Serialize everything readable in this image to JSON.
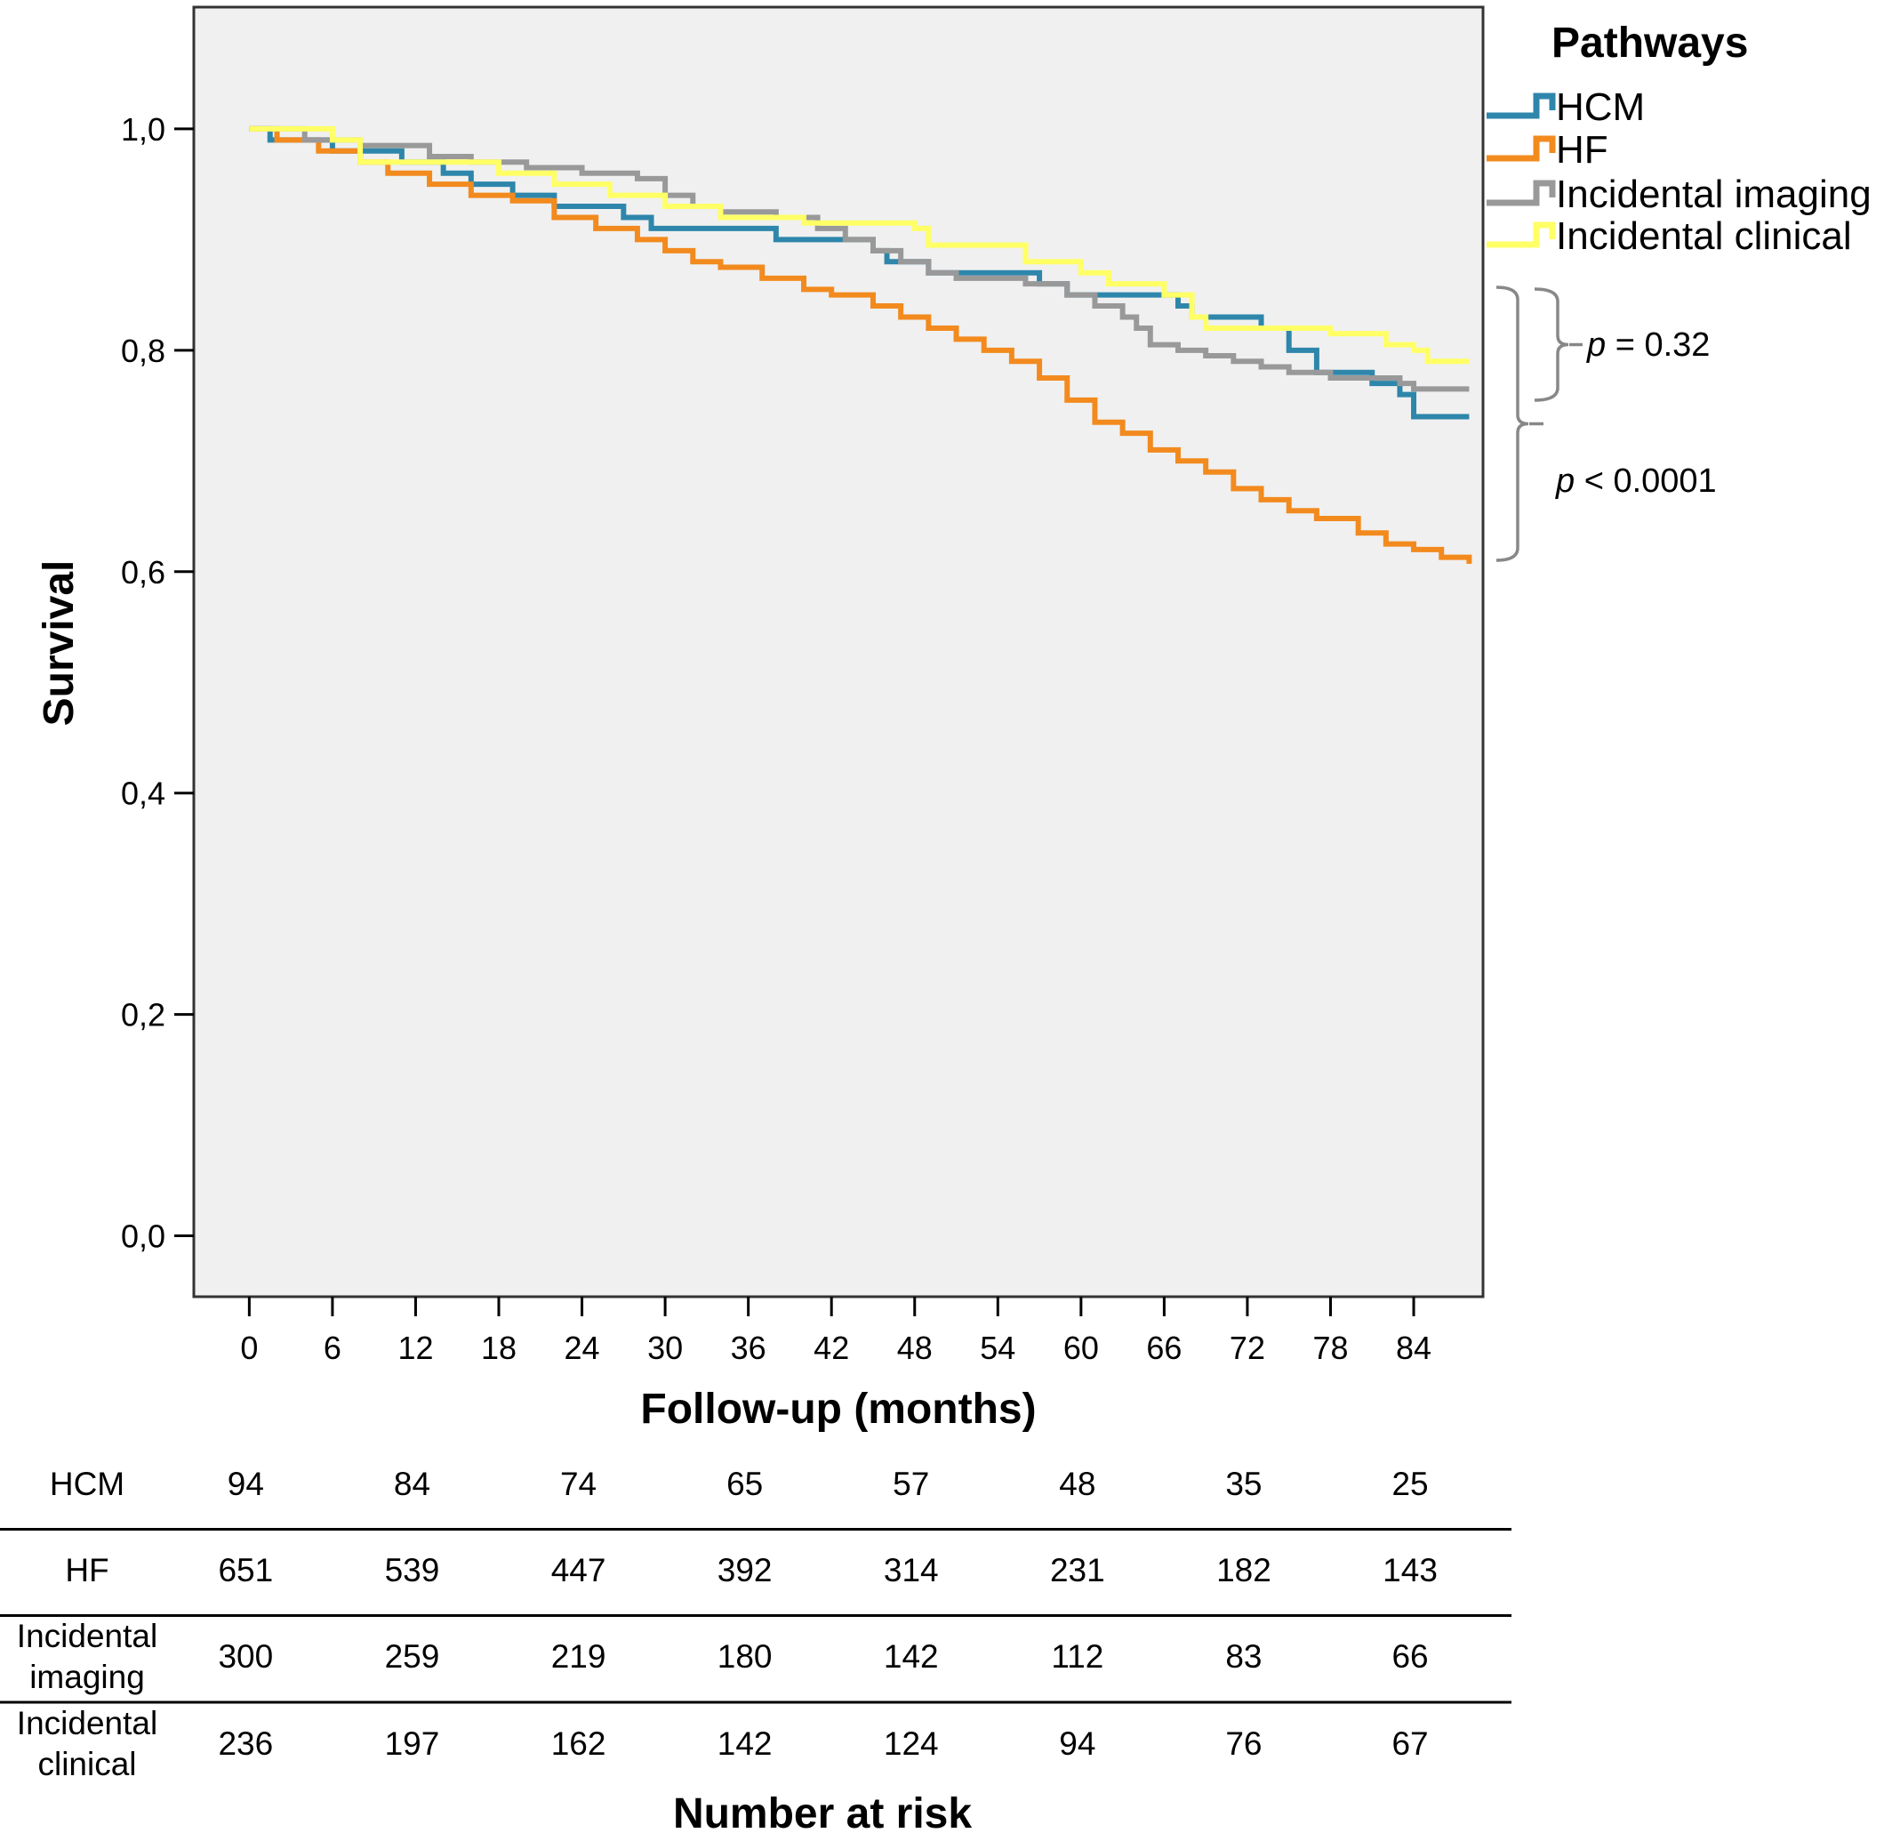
{
  "chart_data": {
    "type": "line",
    "step": true,
    "xlabel": "Follow-up (months)",
    "ylabel": "Survival",
    "xlim": [
      -4,
      89
    ],
    "ylim": [
      -0.055,
      1.11
    ],
    "x_ticks": [
      0,
      6,
      12,
      18,
      24,
      30,
      36,
      42,
      48,
      54,
      60,
      66,
      72,
      78,
      84
    ],
    "y_ticks": [
      0.0,
      0.2,
      0.4,
      0.6,
      0.8,
      1.0
    ],
    "y_tick_labels": [
      "0,0",
      "0,2",
      "0,4",
      "0,6",
      "0,8",
      "1,0"
    ],
    "grid": false,
    "plot_background": "#f0f0f0",
    "legend": {
      "title": "Pathways",
      "placement": "right"
    },
    "series": [
      {
        "name": "HCM",
        "color": "#2e86ab",
        "points": [
          [
            0,
            1.0
          ],
          [
            1.5,
            0.99
          ],
          [
            6,
            0.98
          ],
          [
            11,
            0.97
          ],
          [
            14,
            0.96
          ],
          [
            16,
            0.95
          ],
          [
            19,
            0.94
          ],
          [
            22,
            0.93
          ],
          [
            27,
            0.92
          ],
          [
            29,
            0.91
          ],
          [
            34,
            0.91
          ],
          [
            38,
            0.9
          ],
          [
            45,
            0.89
          ],
          [
            46,
            0.88
          ],
          [
            49,
            0.87
          ],
          [
            57,
            0.86
          ],
          [
            59,
            0.85
          ],
          [
            67,
            0.84
          ],
          [
            68,
            0.83
          ],
          [
            73,
            0.82
          ],
          [
            75,
            0.8
          ],
          [
            77,
            0.78
          ],
          [
            81,
            0.77
          ],
          [
            83,
            0.76
          ],
          [
            84,
            0.74
          ],
          [
            88,
            0.74
          ]
        ]
      },
      {
        "name": "HF",
        "color": "#f28a1e",
        "points": [
          [
            0,
            1.0
          ],
          [
            2,
            0.99
          ],
          [
            5,
            0.98
          ],
          [
            8,
            0.97
          ],
          [
            10,
            0.96
          ],
          [
            13,
            0.95
          ],
          [
            16,
            0.94
          ],
          [
            19,
            0.935
          ],
          [
            22,
            0.92
          ],
          [
            25,
            0.91
          ],
          [
            28,
            0.9
          ],
          [
            30,
            0.89
          ],
          [
            32,
            0.88
          ],
          [
            34,
            0.875
          ],
          [
            37,
            0.865
          ],
          [
            40,
            0.855
          ],
          [
            42,
            0.85
          ],
          [
            45,
            0.84
          ],
          [
            47,
            0.83
          ],
          [
            49,
            0.82
          ],
          [
            51,
            0.81
          ],
          [
            53,
            0.8
          ],
          [
            55,
            0.79
          ],
          [
            57,
            0.775
          ],
          [
            59,
            0.755
          ],
          [
            61,
            0.735
          ],
          [
            63,
            0.725
          ],
          [
            65,
            0.71
          ],
          [
            67,
            0.7
          ],
          [
            69,
            0.69
          ],
          [
            71,
            0.675
          ],
          [
            73,
            0.665
          ],
          [
            75,
            0.655
          ],
          [
            77,
            0.648
          ],
          [
            80,
            0.635
          ],
          [
            82,
            0.625
          ],
          [
            84,
            0.62
          ],
          [
            86,
            0.613
          ],
          [
            88,
            0.607
          ]
        ]
      },
      {
        "name": "Incidental imaging",
        "color": "#999999",
        "points": [
          [
            0,
            1.0
          ],
          [
            4,
            0.99
          ],
          [
            8,
            0.985
          ],
          [
            13,
            0.975
          ],
          [
            16,
            0.97
          ],
          [
            20,
            0.965
          ],
          [
            24,
            0.96
          ],
          [
            28,
            0.955
          ],
          [
            30,
            0.94
          ],
          [
            32,
            0.93
          ],
          [
            34,
            0.925
          ],
          [
            38,
            0.92
          ],
          [
            41,
            0.91
          ],
          [
            43,
            0.9
          ],
          [
            45,
            0.89
          ],
          [
            47,
            0.88
          ],
          [
            49,
            0.87
          ],
          [
            51,
            0.865
          ],
          [
            56,
            0.86
          ],
          [
            59,
            0.85
          ],
          [
            61,
            0.84
          ],
          [
            63,
            0.83
          ],
          [
            64,
            0.82
          ],
          [
            65,
            0.805
          ],
          [
            67,
            0.8
          ],
          [
            69,
            0.795
          ],
          [
            71,
            0.79
          ],
          [
            73,
            0.785
          ],
          [
            75,
            0.78
          ],
          [
            78,
            0.775
          ],
          [
            83,
            0.77
          ],
          [
            84,
            0.765
          ],
          [
            88,
            0.765
          ]
        ]
      },
      {
        "name": "Incidental clinical",
        "color": "#ffff66",
        "points": [
          [
            0,
            1.0
          ],
          [
            6,
            0.99
          ],
          [
            8,
            0.97
          ],
          [
            18,
            0.96
          ],
          [
            22,
            0.95
          ],
          [
            26,
            0.94
          ],
          [
            30,
            0.93
          ],
          [
            34,
            0.92
          ],
          [
            40,
            0.915
          ],
          [
            48,
            0.91
          ],
          [
            49,
            0.895
          ],
          [
            56,
            0.88
          ],
          [
            60,
            0.87
          ],
          [
            62,
            0.86
          ],
          [
            66,
            0.85
          ],
          [
            68,
            0.83
          ],
          [
            69,
            0.82
          ],
          [
            78,
            0.815
          ],
          [
            82,
            0.805
          ],
          [
            84,
            0.8
          ],
          [
            85,
            0.79
          ],
          [
            88,
            0.79
          ]
        ]
      }
    ],
    "annotations": [
      {
        "text": "p = 0.32",
        "between": [
          "HCM",
          "Incidental imaging",
          "Incidental clinical"
        ]
      },
      {
        "text": "p < 0.0001",
        "between": [
          "all pathways"
        ]
      }
    ]
  },
  "pvalues": [
    {
      "italic": "p",
      "rest": " = 0.32"
    },
    {
      "italic": "p",
      "rest": " < 0.0001"
    }
  ],
  "risk_table": {
    "title": "Number at risk",
    "time_points": [
      0,
      12,
      24,
      36,
      48,
      60,
      72,
      84
    ],
    "rows": [
      {
        "label": [
          "HCM"
        ],
        "values": [
          "94",
          "84",
          "74",
          "65",
          "57",
          "48",
          "35",
          "25"
        ]
      },
      {
        "label": [
          "HF"
        ],
        "values": [
          "651",
          "539",
          "447",
          "392",
          "314",
          "231",
          "182",
          "143"
        ]
      },
      {
        "label": [
          "Incidental",
          "imaging"
        ],
        "values": [
          "300",
          "259",
          "219",
          "180",
          "142",
          "112",
          "83",
          "66"
        ]
      },
      {
        "label": [
          "Incidental",
          "clinical"
        ],
        "values": [
          "236",
          "197",
          "162",
          "142",
          "124",
          "94",
          "76",
          "67"
        ]
      }
    ]
  }
}
